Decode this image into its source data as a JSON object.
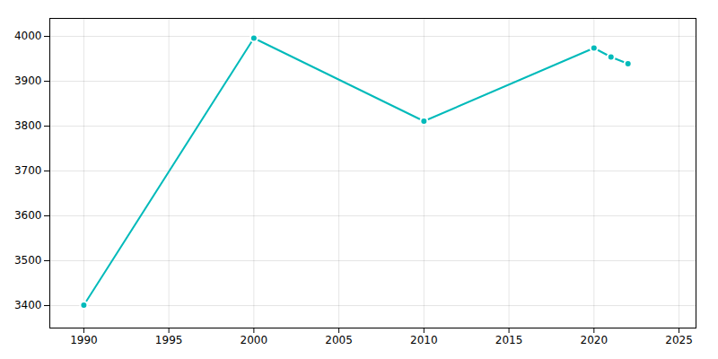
{
  "chart_data": {
    "type": "line",
    "x": [
      1990,
      2000,
      2010,
      2020,
      2021,
      2022
    ],
    "values": [
      3401,
      3996,
      3811,
      3974,
      3954,
      3939
    ],
    "color": "#00BABA",
    "marker": "circle",
    "xlim": [
      1988,
      2026
    ],
    "ylim": [
      3350,
      4040
    ],
    "xticks": [
      1990,
      1995,
      2000,
      2005,
      2010,
      2015,
      2020,
      2025
    ],
    "yticks": [
      3400,
      3500,
      3600,
      3700,
      3800,
      3900,
      4000
    ],
    "grid": true
  }
}
